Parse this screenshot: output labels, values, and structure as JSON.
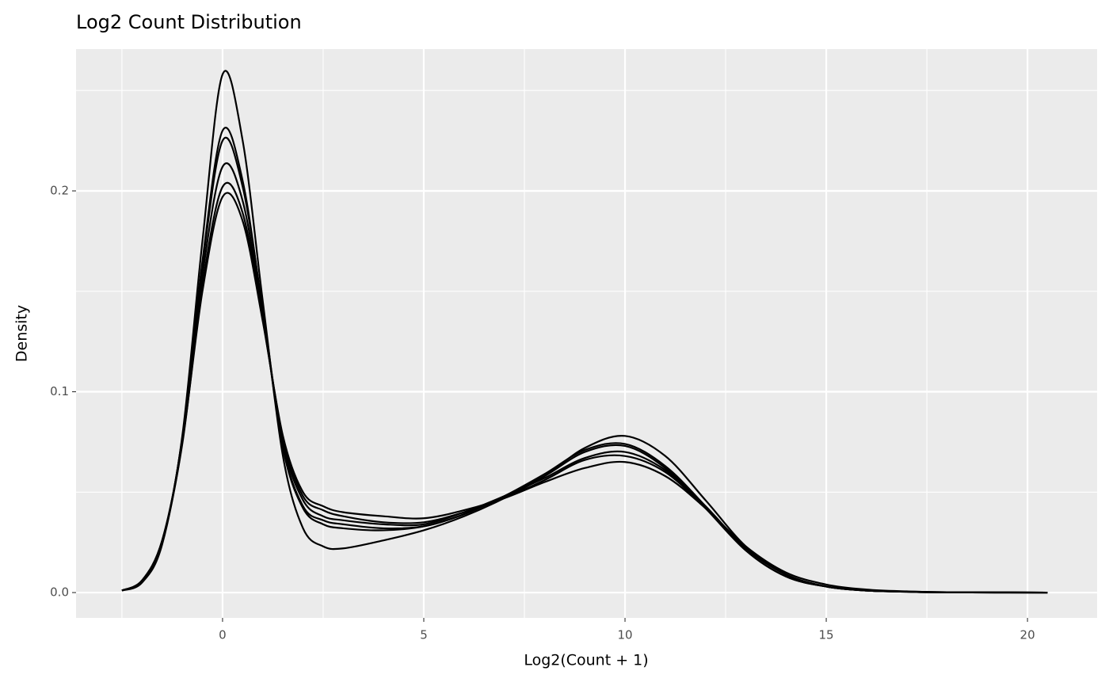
{
  "chart_data": {
    "type": "line",
    "title": "Log2 Count Distribution",
    "xlabel": "Log2(Count + 1)",
    "ylabel": "Density",
    "x": [
      -2.5,
      -2,
      -1.5,
      -1,
      -0.5,
      0,
      0.5,
      1,
      1.5,
      2,
      2.5,
      3,
      4,
      5,
      6,
      7,
      8,
      9,
      10,
      11,
      12,
      13,
      14,
      15,
      16,
      17,
      18,
      20.5
    ],
    "series": [
      {
        "color": "#000000",
        "values": [
          0.001,
          0.005,
          0.024,
          0.078,
          0.175,
          0.258,
          0.225,
          0.145,
          0.068,
          0.032,
          0.023,
          0.022,
          0.026,
          0.031,
          0.038,
          0.047,
          0.058,
          0.072,
          0.078,
          0.068,
          0.046,
          0.023,
          0.009,
          0.003,
          0.001,
          0.0004,
          0.0001,
          0
        ]
      },
      {
        "color": "#000000",
        "values": [
          0.001,
          0.006,
          0.026,
          0.075,
          0.15,
          0.197,
          0.185,
          0.135,
          0.078,
          0.05,
          0.043,
          0.04,
          0.038,
          0.037,
          0.041,
          0.047,
          0.055,
          0.062,
          0.065,
          0.058,
          0.042,
          0.023,
          0.01,
          0.004,
          0.0015,
          0.0006,
          0.0002,
          0
        ]
      },
      {
        "color": "#000000",
        "values": [
          0.001,
          0.006,
          0.025,
          0.077,
          0.165,
          0.23,
          0.205,
          0.14,
          0.072,
          0.042,
          0.034,
          0.032,
          0.031,
          0.033,
          0.039,
          0.048,
          0.059,
          0.071,
          0.074,
          0.063,
          0.043,
          0.021,
          0.008,
          0.003,
          0.001,
          0.0004,
          0.0001,
          0
        ]
      },
      {
        "color": "#000000",
        "values": [
          0.001,
          0.006,
          0.025,
          0.075,
          0.158,
          0.212,
          0.195,
          0.138,
          0.075,
          0.046,
          0.038,
          0.036,
          0.034,
          0.034,
          0.04,
          0.048,
          0.057,
          0.067,
          0.07,
          0.061,
          0.043,
          0.022,
          0.009,
          0.003,
          0.001,
          0.0005,
          0.0002,
          0
        ]
      },
      {
        "color": "#000000",
        "values": [
          0.001,
          0.006,
          0.026,
          0.074,
          0.153,
          0.202,
          0.189,
          0.136,
          0.077,
          0.048,
          0.041,
          0.038,
          0.035,
          0.035,
          0.04,
          0.047,
          0.056,
          0.066,
          0.068,
          0.06,
          0.042,
          0.022,
          0.009,
          0.003,
          0.001,
          0.0005,
          0.0002,
          0
        ]
      },
      {
        "color": "#000000",
        "values": [
          0.001,
          0.006,
          0.025,
          0.077,
          0.163,
          0.225,
          0.202,
          0.141,
          0.073,
          0.043,
          0.036,
          0.034,
          0.032,
          0.033,
          0.039,
          0.048,
          0.058,
          0.07,
          0.073,
          0.062,
          0.042,
          0.021,
          0.008,
          0.003,
          0.001,
          0.0004,
          0.0001,
          0
        ]
      }
    ],
    "xlim": [
      -3.64,
      21.73
    ],
    "ylim": [
      -0.0126,
      0.2706
    ],
    "xticks": [
      0,
      5,
      10,
      15,
      20
    ],
    "yticks": [
      {
        "value": 0,
        "label": "0.0"
      },
      0.1,
      0.2
    ],
    "xminor": [
      -2.5,
      2.5,
      7.5,
      12.5,
      17.5
    ],
    "yminor": [
      0.05,
      0.15,
      0.25
    ],
    "grid": true,
    "legend": false
  }
}
